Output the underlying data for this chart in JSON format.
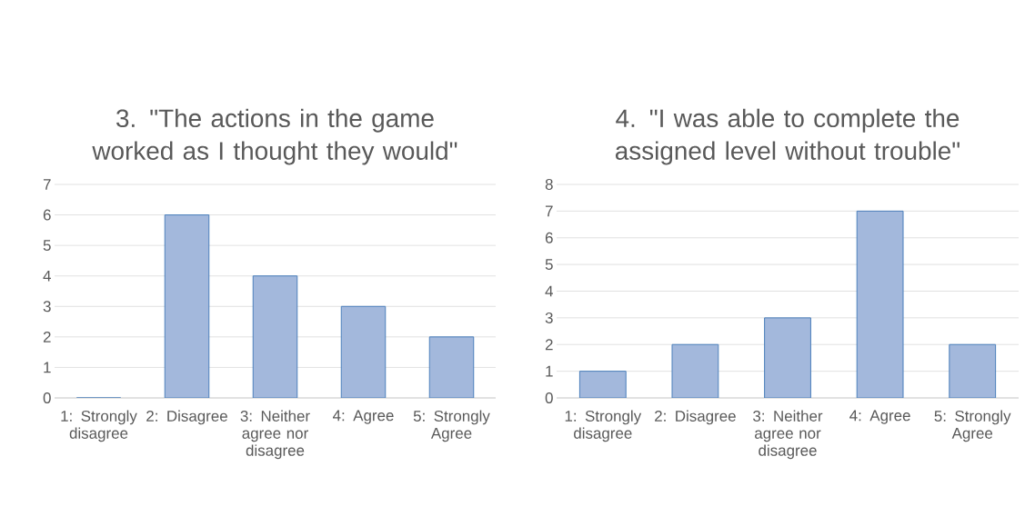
{
  "chart_data": [
    {
      "type": "bar",
      "title": "3. \"The actions in the game worked as I thought they would\"",
      "categories": [
        "1: Strongly disagree",
        "2: Disagree",
        "3: Neither agree nor disagree",
        "4: Agree",
        "5: Strongly Agree"
      ],
      "values": [
        0,
        6,
        4,
        3,
        2
      ],
      "color": "#a3b8dc",
      "ylim": [
        0,
        7
      ],
      "yticks": [
        0,
        1,
        2,
        3,
        4,
        5,
        6,
        7
      ],
      "grid": "y"
    },
    {
      "type": "bar",
      "title": "4. \"I was able to complete the assigned level without trouble\"",
      "categories": [
        "1: Strongly disagree",
        "2: Disagree",
        "3: Neither agree nor disagree",
        "4: Agree",
        "5: Strongly Agree"
      ],
      "values": [
        1,
        2,
        3,
        7,
        2
      ],
      "color": "#a3b8dc",
      "ylim": [
        0,
        8
      ],
      "yticks": [
        0,
        1,
        2,
        3,
        4,
        5,
        6,
        7,
        8
      ],
      "grid": "y"
    }
  ]
}
